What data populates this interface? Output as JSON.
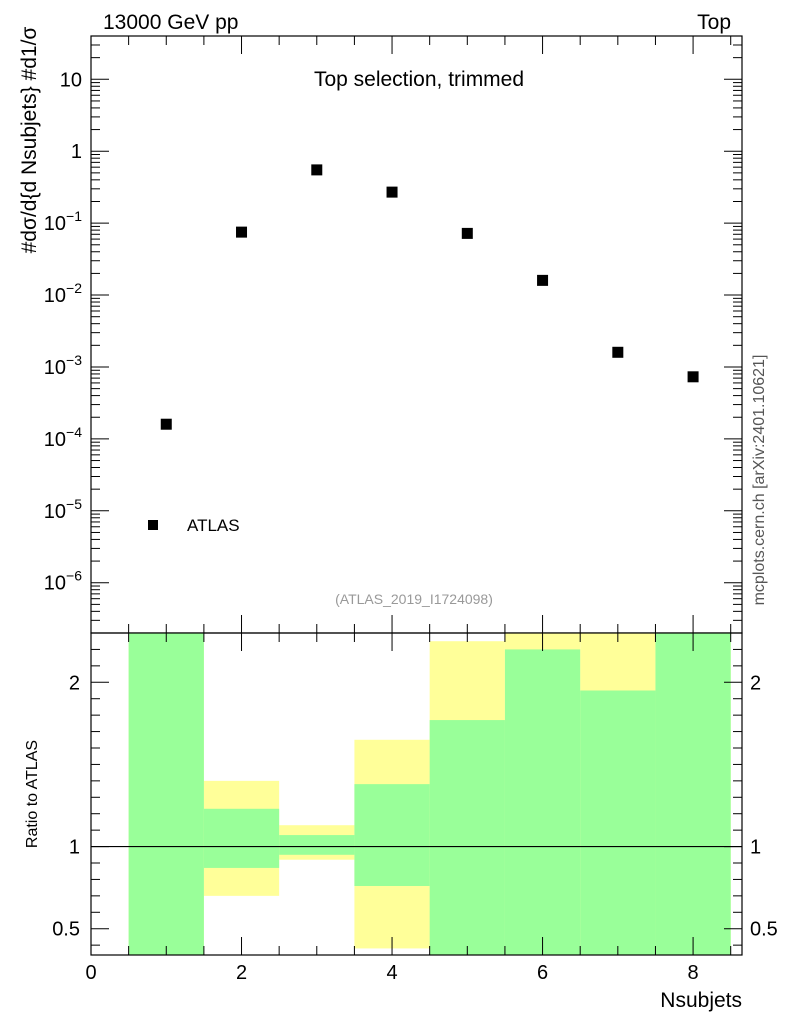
{
  "header": {
    "left": "13000 GeV pp",
    "right": "Top"
  },
  "side_label": "mcplots.cern.ch [arXiv:2401.10621]",
  "analysis_id": "(ATLAS_2019_I1724098)",
  "chart_data": [
    {
      "type": "scatter",
      "title": "Top selection, trimmed",
      "ylabel": "#dσ/d{d Nsubjets} #d1/σ",
      "xlabel": "",
      "xlim": [
        0,
        8.65
      ],
      "ylim": [
        2e-07,
        40
      ],
      "yscale": "log",
      "legend": "bottom-left",
      "series": [
        {
          "name": "ATLAS",
          "color": "#000000",
          "x": [
            1,
            2,
            3,
            4,
            5,
            6,
            7,
            8
          ],
          "y": [
            0.00016,
            0.075,
            0.55,
            0.27,
            0.072,
            0.016,
            0.0016,
            0.00073
          ]
        }
      ],
      "yticks": [
        {
          "v": 1e-06,
          "base": "10",
          "exp": "−6"
        },
        {
          "v": 1e-05,
          "base": "10",
          "exp": "−5"
        },
        {
          "v": 0.0001,
          "base": "10",
          "exp": "−4"
        },
        {
          "v": 0.001,
          "base": "10",
          "exp": "−3"
        },
        {
          "v": 0.01,
          "base": "10",
          "exp": "−2"
        },
        {
          "v": 0.1,
          "base": "10",
          "exp": "−1"
        },
        {
          "v": 1,
          "base": "1",
          "exp": ""
        },
        {
          "v": 10,
          "base": "10",
          "exp": ""
        }
      ]
    },
    {
      "type": "area",
      "ylabel": "Ratio to ATLAS",
      "xlabel": "Nsubjets",
      "xlim": [
        0,
        8.65
      ],
      "ylim": [
        0.34,
        2.3
      ],
      "reference_line": 1,
      "xticks": [
        0,
        2,
        4,
        6,
        8
      ],
      "yticks": [
        0.5,
        1,
        2
      ],
      "bins": [
        0.5,
        1.5,
        2.5,
        3.5,
        4.5,
        5.5,
        6.5,
        7.5,
        8.5
      ],
      "yellow_band": {
        "color": "#ffff99",
        "low": [
          0.34,
          0.7,
          0.92,
          0.38,
          0.34,
          0.34,
          0.34,
          0.34
        ],
        "high": [
          2.3,
          1.4,
          1.13,
          1.65,
          2.25,
          2.3,
          2.3,
          2.3
        ]
      },
      "green_band": {
        "color": "#99ff99",
        "low": [
          0.34,
          0.87,
          0.95,
          0.76,
          0.34,
          0.34,
          0.34,
          0.34
        ],
        "high": [
          2.3,
          1.23,
          1.07,
          1.38,
          1.77,
          2.2,
          1.95,
          2.3
        ]
      }
    }
  ]
}
